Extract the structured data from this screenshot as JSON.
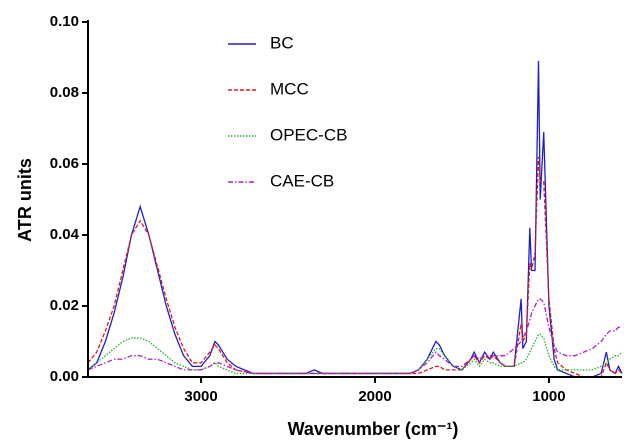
{
  "chart_data": {
    "type": "line",
    "xlabel": "Wavenumber (cm⁻¹)",
    "ylabel": "ATR units",
    "xlim": [
      3650,
      580
    ],
    "ylim": [
      0,
      0.1
    ],
    "xticks": [
      3000,
      2000,
      1000
    ],
    "yticks": [
      {
        "value": 0,
        "label": "0.00"
      },
      {
        "value": 0.02,
        "label": "0.02"
      },
      {
        "value": 0.04,
        "label": "0.04"
      },
      {
        "value": 0.06,
        "label": "0.06"
      },
      {
        "value": 0.08,
        "label": "0.08"
      },
      {
        "value": 0.1,
        "label": "0.10"
      }
    ],
    "legend_position": "upper center",
    "x": [
      3650,
      3600,
      3550,
      3500,
      3450,
      3400,
      3350,
      3300,
      3250,
      3200,
      3150,
      3100,
      3050,
      3000,
      2950,
      2920,
      2900,
      2850,
      2800,
      2700,
      2600,
      2500,
      2400,
      2350,
      2300,
      2200,
      2100,
      2000,
      1900,
      1800,
      1750,
      1700,
      1650,
      1630,
      1600,
      1550,
      1500,
      1450,
      1430,
      1400,
      1370,
      1340,
      1320,
      1280,
      1250,
      1200,
      1160,
      1150,
      1130,
      1110,
      1100,
      1080,
      1060,
      1050,
      1030,
      1000,
      970,
      950,
      900,
      850,
      800,
      750,
      700,
      670,
      650,
      620,
      600,
      580
    ],
    "series": [
      {
        "name": "BC",
        "color": "#1f1fc8",
        "style": "solid",
        "values": [
          0.002,
          0.004,
          0.01,
          0.018,
          0.028,
          0.04,
          0.048,
          0.04,
          0.03,
          0.02,
          0.012,
          0.006,
          0.003,
          0.003,
          0.006,
          0.01,
          0.009,
          0.005,
          0.003,
          0.001,
          0.001,
          0.001,
          0.001,
          0.002,
          0.001,
          0.001,
          0.001,
          0.001,
          0.001,
          0.001,
          0.002,
          0.005,
          0.01,
          0.009,
          0.006,
          0.003,
          0.002,
          0.005,
          0.007,
          0.004,
          0.007,
          0.005,
          0.007,
          0.004,
          0.003,
          0.003,
          0.022,
          0.008,
          0.01,
          0.042,
          0.03,
          0.03,
          0.089,
          0.05,
          0.069,
          0.02,
          0.005,
          0.002,
          0.001,
          0,
          0,
          0,
          0.001,
          0.007,
          0.002,
          0.001,
          0.003,
          0.001
        ]
      },
      {
        "name": "MCC",
        "color": "#e01a1a",
        "style": "dashed",
        "values": [
          0.004,
          0.007,
          0.013,
          0.02,
          0.03,
          0.04,
          0.044,
          0.04,
          0.031,
          0.022,
          0.014,
          0.008,
          0.004,
          0.004,
          0.007,
          0.009,
          0.008,
          0.004,
          0.002,
          0.001,
          0.001,
          0.001,
          0.001,
          0.001,
          0.001,
          0.001,
          0.001,
          0.001,
          0.001,
          0.001,
          0.001,
          0.002,
          0.003,
          0.003,
          0.002,
          0.002,
          0.002,
          0.005,
          0.006,
          0.004,
          0.006,
          0.005,
          0.006,
          0.004,
          0.003,
          0.003,
          0.015,
          0.01,
          0.012,
          0.032,
          0.03,
          0.035,
          0.062,
          0.055,
          0.055,
          0.022,
          0.008,
          0.004,
          0.002,
          0.001,
          0,
          0,
          0,
          0.004,
          0.002,
          0.001,
          0.002,
          0.001
        ]
      },
      {
        "name": "OPEC-CB",
        "color": "#1fb01f",
        "style": "dotted",
        "values": [
          0.002,
          0.004,
          0.006,
          0.008,
          0.01,
          0.011,
          0.011,
          0.01,
          0.008,
          0.006,
          0.004,
          0.003,
          0.002,
          0.002,
          0.003,
          0.004,
          0.003,
          0.002,
          0.001,
          0.001,
          0.001,
          0.001,
          0.001,
          0.001,
          0.001,
          0.001,
          0.001,
          0.001,
          0.001,
          0.001,
          0.002,
          0.005,
          0.008,
          0.008,
          0.006,
          0.003,
          0.002,
          0.004,
          0.005,
          0.003,
          0.005,
          0.004,
          0.004,
          0.003,
          0.003,
          0.003,
          0.004,
          0.004,
          0.005,
          0.007,
          0.008,
          0.01,
          0.012,
          0.012,
          0.011,
          0.006,
          0.003,
          0.002,
          0.002,
          0.002,
          0.002,
          0.002,
          0.003,
          0.004,
          0.005,
          0.006,
          0.006,
          0.007
        ]
      },
      {
        "name": "CAE-CB",
        "color": "#b01fc8",
        "style": "dashdot",
        "values": [
          0.002,
          0.003,
          0.004,
          0.005,
          0.005,
          0.006,
          0.006,
          0.005,
          0.005,
          0.004,
          0.003,
          0.002,
          0.002,
          0.002,
          0.003,
          0.004,
          0.004,
          0.003,
          0.002,
          0.001,
          0.001,
          0.001,
          0.001,
          0.001,
          0.001,
          0.001,
          0.001,
          0.001,
          0.001,
          0.001,
          0.002,
          0.004,
          0.007,
          0.006,
          0.005,
          0.003,
          0.003,
          0.005,
          0.006,
          0.005,
          0.006,
          0.006,
          0.006,
          0.006,
          0.006,
          0.008,
          0.01,
          0.011,
          0.013,
          0.016,
          0.018,
          0.02,
          0.022,
          0.022,
          0.021,
          0.014,
          0.009,
          0.007,
          0.006,
          0.006,
          0.007,
          0.008,
          0.01,
          0.012,
          0.013,
          0.013,
          0.014,
          0.014
        ]
      }
    ]
  }
}
